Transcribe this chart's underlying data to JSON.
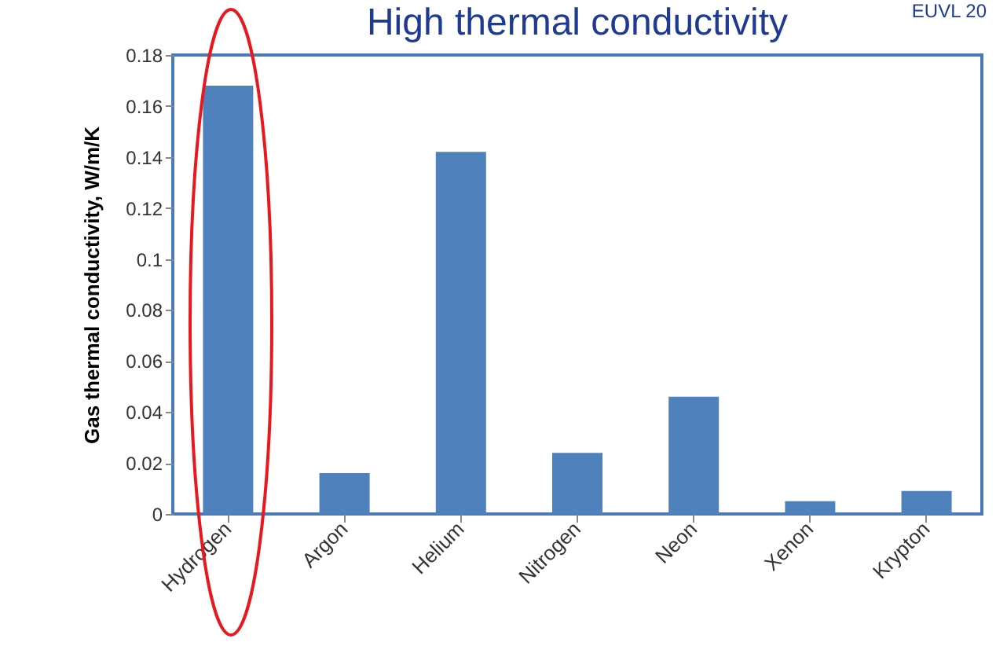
{
  "chart_data": {
    "type": "bar",
    "title": "High thermal conductivity",
    "ylabel": "Gas thermal conductivity, W/m/K",
    "categories": [
      "Hydrogen",
      "Argon",
      "Helium",
      "Nitrogen",
      "Neon",
      "Xenon",
      "Krypton"
    ],
    "values": [
      0.168,
      0.016,
      0.142,
      0.024,
      0.046,
      0.005,
      0.009
    ],
    "color": "#4f81bd",
    "ylim": [
      0,
      0.18
    ],
    "yticks": [
      0,
      0.02,
      0.04,
      0.06,
      0.08,
      0.1,
      0.12,
      0.14,
      0.16,
      0.18
    ],
    "grid": false,
    "annotations": [
      "EUVL 20"
    ]
  }
}
